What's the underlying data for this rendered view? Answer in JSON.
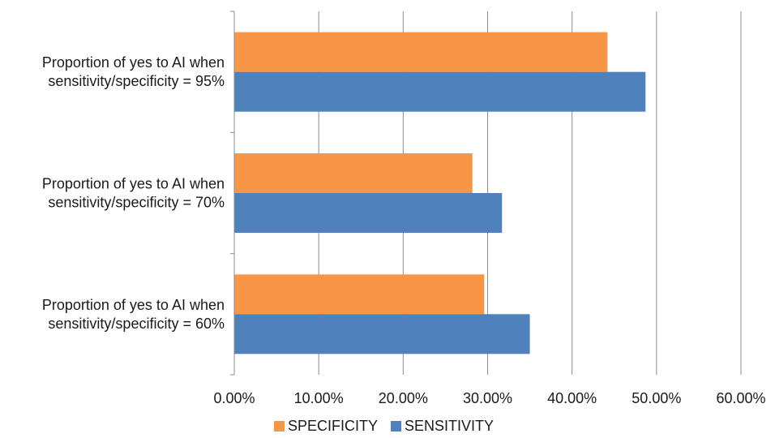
{
  "chart_data": {
    "type": "bar",
    "orientation": "horizontal",
    "categories": [
      [
        "Proportion of yes to AI when",
        "sensitivity/specificity = 95%"
      ],
      [
        "Proportion of yes to AI when",
        "sensitivity/specificity = 70%"
      ],
      [
        "Proportion of yes to AI when",
        "sensitivity/specificity = 60%"
      ]
    ],
    "series": [
      {
        "name": "SPECIFICITY",
        "color": "#F79646",
        "values": [
          44.2,
          28.2,
          29.6
        ]
      },
      {
        "name": "SENSITIVITY",
        "color": "#4F81BD",
        "values": [
          48.7,
          31.7,
          35.0
        ]
      }
    ],
    "xlim": [
      0,
      60
    ],
    "xticks": [
      0,
      10,
      20,
      30,
      40,
      50,
      60
    ],
    "xtick_labels": [
      "0.00%",
      "10.00%",
      "20.00%",
      "30.00%",
      "40.00%",
      "50.00%",
      "60.00%"
    ],
    "grid": "vertical",
    "legend_position": "bottom",
    "title": "",
    "xlabel": "",
    "ylabel": ""
  }
}
